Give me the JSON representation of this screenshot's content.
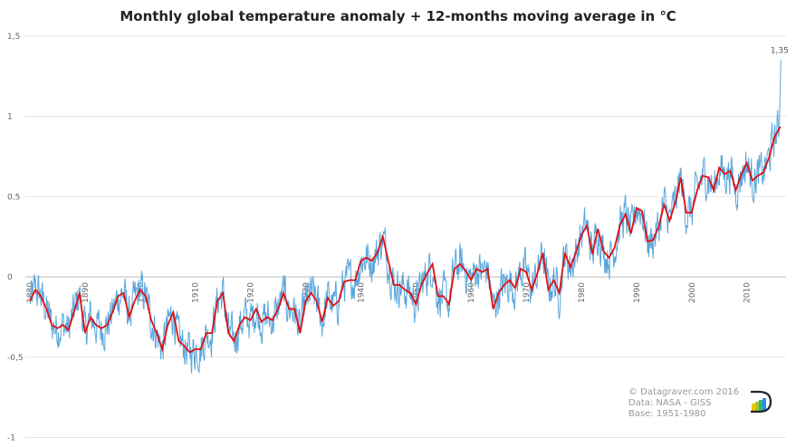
{
  "chart_data": {
    "type": "line",
    "title": "Monthly global temperature anomaly + 12-months moving average in ℃",
    "xlabel": "",
    "ylabel": "",
    "ylim": [
      -1,
      1.5
    ],
    "xlim": [
      1879,
      2016.5
    ],
    "yticks": [
      "1,5",
      "1",
      "0,5",
      "0",
      "-0,5",
      "-1"
    ],
    "ytick_values": [
      1.5,
      1,
      0.5,
      0,
      -0.5,
      -1
    ],
    "xticks": [
      "1880",
      "1890",
      "1900",
      "1910",
      "1920",
      "1930",
      "1940",
      "1950",
      "1960",
      "1970",
      "1980",
      "1990",
      "2000",
      "2010"
    ],
    "grid": "horizontal",
    "annotation": {
      "text": "1,35",
      "x": 2016.1,
      "y": 1.35
    },
    "series": [
      {
        "role": "monthly anomaly",
        "color": "#5aa6dc",
        "monthly_noise_amplitude": 0.13
      },
      {
        "role": "12-months moving average",
        "color": "#e01010",
        "years": [
          1880,
          1881,
          1882,
          1883,
          1884,
          1885,
          1886,
          1887,
          1888,
          1889,
          1890,
          1891,
          1892,
          1893,
          1894,
          1895,
          1896,
          1897,
          1898,
          1899,
          1900,
          1901,
          1902,
          1903,
          1904,
          1905,
          1906,
          1907,
          1908,
          1909,
          1910,
          1911,
          1912,
          1913,
          1914,
          1915,
          1916,
          1917,
          1918,
          1919,
          1920,
          1921,
          1922,
          1923,
          1924,
          1925,
          1926,
          1927,
          1928,
          1929,
          1930,
          1931,
          1932,
          1933,
          1934,
          1935,
          1936,
          1937,
          1938,
          1939,
          1940,
          1941,
          1942,
          1943,
          1944,
          1945,
          1946,
          1947,
          1948,
          1949,
          1950,
          1951,
          1952,
          1953,
          1954,
          1955,
          1956,
          1957,
          1958,
          1959,
          1960,
          1961,
          1962,
          1963,
          1964,
          1965,
          1966,
          1967,
          1968,
          1969,
          1970,
          1971,
          1972,
          1973,
          1974,
          1975,
          1976,
          1977,
          1978,
          1979,
          1980,
          1981,
          1982,
          1983,
          1984,
          1985,
          1986,
          1987,
          1988,
          1989,
          1990,
          1991,
          1992,
          1993,
          1994,
          1995,
          1996,
          1997,
          1998,
          1999,
          2000,
          2001,
          2002,
          2003,
          2004,
          2005,
          2006,
          2007,
          2008,
          2009,
          2010,
          2011,
          2012,
          2013,
          2014,
          2015,
          2016
        ],
        "values": [
          -0.15,
          -0.08,
          -0.12,
          -0.2,
          -0.3,
          -0.32,
          -0.3,
          -0.33,
          -0.22,
          -0.1,
          -0.35,
          -0.25,
          -0.3,
          -0.32,
          -0.3,
          -0.22,
          -0.12,
          -0.1,
          -0.25,
          -0.15,
          -0.08,
          -0.12,
          -0.27,
          -0.35,
          -0.45,
          -0.3,
          -0.22,
          -0.4,
          -0.43,
          -0.47,
          -0.45,
          -0.45,
          -0.35,
          -0.35,
          -0.15,
          -0.1,
          -0.35,
          -0.4,
          -0.3,
          -0.25,
          -0.27,
          -0.2,
          -0.28,
          -0.25,
          -0.27,
          -0.2,
          -0.1,
          -0.2,
          -0.2,
          -0.35,
          -0.15,
          -0.1,
          -0.15,
          -0.28,
          -0.13,
          -0.18,
          -0.15,
          -0.03,
          -0.02,
          -0.02,
          0.1,
          0.12,
          0.1,
          0.15,
          0.25,
          0.1,
          -0.05,
          -0.05,
          -0.08,
          -0.1,
          -0.17,
          -0.05,
          0.02,
          0.08,
          -0.12,
          -0.12,
          -0.17,
          0.05,
          0.08,
          0.04,
          -0.02,
          0.05,
          0.03,
          0.05,
          -0.2,
          -0.1,
          -0.05,
          -0.02,
          -0.07,
          0.05,
          0.03,
          -0.08,
          0.02,
          0.15,
          -0.08,
          -0.02,
          -0.1,
          0.15,
          0.06,
          0.15,
          0.26,
          0.32,
          0.14,
          0.3,
          0.16,
          0.12,
          0.18,
          0.32,
          0.39,
          0.27,
          0.43,
          0.41,
          0.22,
          0.23,
          0.31,
          0.45,
          0.35,
          0.46,
          0.62,
          0.4,
          0.4,
          0.54,
          0.63,
          0.62,
          0.54,
          0.68,
          0.64,
          0.66,
          0.54,
          0.64,
          0.71,
          0.6,
          0.63,
          0.65,
          0.74,
          0.87,
          0.93
        ]
      }
    ]
  },
  "credits": {
    "line1": "© Datagraver.com  2016",
    "line2": "Data: NASA - GISS",
    "line3": "Base: 1951-1980"
  },
  "logo": {
    "text": "Datagraver"
  }
}
